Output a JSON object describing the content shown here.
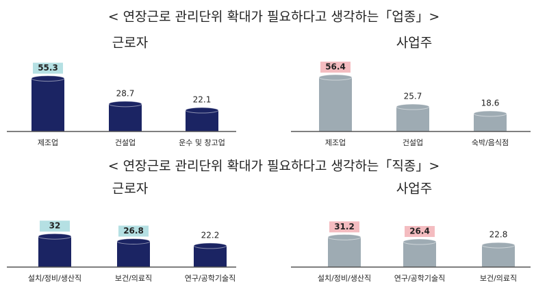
{
  "headings": [
    "< 연장근로 관리단위 확대가 필요하다고 생각하는「업종」>",
    "< 연장근로 관리단위 확대가 필요하다고 생각하는「직종」>"
  ],
  "chart_data": [
    {
      "type": "bar",
      "title": "근로자",
      "categories": [
        "제조업",
        "건설업",
        "운수 및 창고업"
      ],
      "values": [
        55.3,
        28.7,
        22.1
      ],
      "color": "#1b2463",
      "highlighted": [
        true,
        false,
        false
      ],
      "highlight_color": "#b5e0e3",
      "ylim": [
        0,
        60
      ]
    },
    {
      "type": "bar",
      "title": "사업주",
      "categories": [
        "제조업",
        "건설업",
        "숙박/음식점"
      ],
      "values": [
        56.4,
        25.7,
        18.6
      ],
      "color": "#9eabb3",
      "highlighted": [
        true,
        false,
        false
      ],
      "highlight_color": "#f4bcc0",
      "ylim": [
        0,
        60
      ]
    },
    {
      "type": "bar",
      "title": "근로자",
      "categories": [
        "설치/정비/생산직",
        "보건/의료직",
        "연구/공학기술직"
      ],
      "values": [
        32,
        26.8,
        22.2
      ],
      "color": "#1b2463",
      "highlighted": [
        true,
        true,
        false
      ],
      "highlight_color": "#b5e0e3",
      "ylim": [
        0,
        60
      ]
    },
    {
      "type": "bar",
      "title": "사업주",
      "categories": [
        "설치/정비/생산직",
        "연구/공학기술직",
        "보건/의료직"
      ],
      "values": [
        31.2,
        26.4,
        22.8
      ],
      "color": "#9eabb3",
      "highlighted": [
        true,
        true,
        false
      ],
      "highlight_color": "#f4bcc0",
      "ylim": [
        0,
        60
      ]
    }
  ]
}
